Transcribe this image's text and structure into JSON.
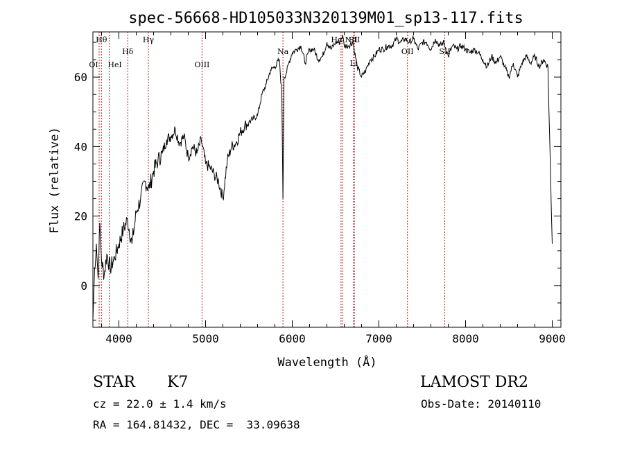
{
  "chart_data": {
    "type": "line",
    "title": "spec-56668-HD105033N320139M01_sp13-117.fits",
    "xlabel": "Wavelength (Å)",
    "ylabel": "Flux (relative)",
    "xlim": [
      3700,
      9100
    ],
    "ylim": [
      -12,
      73
    ],
    "grid": false,
    "x_ticks": [
      4000,
      5000,
      6000,
      7000,
      8000,
      9000
    ],
    "y_ticks": [
      0,
      20,
      40,
      60
    ],
    "series": [
      {
        "x": [
          3700,
          3720,
          3740,
          3760,
          3780,
          3800,
          3830,
          3860,
          3900,
          3950,
          4000,
          4050,
          4100,
          4150,
          4200,
          4250,
          4300,
          4350,
          4400,
          4450,
          4500,
          4550,
          4600,
          4650,
          4700,
          4750,
          4800,
          4850,
          4900,
          4950,
          5000,
          5050,
          5100,
          5150,
          5200,
          5250,
          5300,
          5350,
          5400,
          5450,
          5500,
          5550,
          5600,
          5650,
          5700,
          5750,
          5800,
          5850,
          5880,
          5893,
          5905,
          5930,
          5960,
          6000,
          6050,
          6100,
          6150,
          6200,
          6250,
          6300,
          6350,
          6400,
          6450,
          6500,
          6550,
          6563,
          6580,
          6600,
          6650,
          6700,
          6750,
          6800,
          6850,
          6900,
          6950,
          7000,
          7050,
          7100,
          7150,
          7200,
          7250,
          7300,
          7350,
          7400,
          7450,
          7500,
          7550,
          7600,
          7650,
          7700,
          7750,
          7800,
          7850,
          7900,
          7950,
          8000,
          8050,
          8100,
          8150,
          8200,
          8250,
          8300,
          8350,
          8400,
          8450,
          8500,
          8550,
          8600,
          8650,
          8700,
          8750,
          8800,
          8850,
          8900,
          8950,
          9000
        ],
        "y": [
          -10,
          5,
          12,
          2,
          18,
          7,
          3,
          9,
          5,
          8,
          12,
          16,
          19,
          12,
          21,
          25,
          30,
          28,
          33,
          36,
          38,
          42,
          43,
          45,
          41,
          43,
          37,
          40,
          38,
          42,
          35,
          34,
          32,
          30,
          25,
          36,
          40,
          41,
          44,
          46,
          47,
          48,
          49,
          55,
          58,
          62,
          63,
          65,
          55,
          25,
          60,
          61,
          64,
          67,
          68,
          69,
          64,
          68,
          68,
          65,
          66,
          70,
          68,
          70,
          70,
          71,
          72,
          69,
          69,
          70,
          63,
          60,
          62,
          65,
          66,
          68,
          68,
          69,
          69,
          71,
          70,
          71,
          70,
          71,
          68,
          70,
          70,
          68,
          71,
          69,
          70,
          66,
          69,
          68,
          69,
          68,
          67,
          68,
          67,
          65,
          63,
          66,
          64,
          66,
          63,
          60,
          64,
          60,
          64,
          66,
          64,
          66,
          63,
          65,
          63,
          12
        ]
      }
    ],
    "line_markers": [
      {
        "label": "Hθ",
        "x": 3798
      },
      {
        "label": "OI",
        "x": 3772
      },
      {
        "label": "HeI",
        "x": 3889
      },
      {
        "label": "Hδ",
        "x": 4102
      },
      {
        "label": "Hγ",
        "x": 4340
      },
      {
        "label": "OIII",
        "x": 4959
      },
      {
        "label": "Na",
        "x": 5893
      },
      {
        "label": "Hα",
        "x": 6563
      },
      {
        "label": "NII",
        "x": 6584
      },
      {
        "label": "SII",
        "x": 6717
      },
      {
        "label": "Li",
        "x": 6708
      },
      {
        "label": "OII",
        "x": 7330
      },
      {
        "label": "SII",
        "x": 7760
      }
    ]
  },
  "info": {
    "object_class": "STAR",
    "subclass": "K7",
    "survey": "LAMOST DR2",
    "redshift": "cz = 22.0 ± 1.4 km/s",
    "obs_date": "Obs-Date: 20140110",
    "coords": "RA = 164.81432, DEC =  33.09638"
  },
  "colors": {
    "spectrum": "#000000",
    "marker_line": "#b02020",
    "axes": "#000000",
    "background": "#ffffff"
  }
}
